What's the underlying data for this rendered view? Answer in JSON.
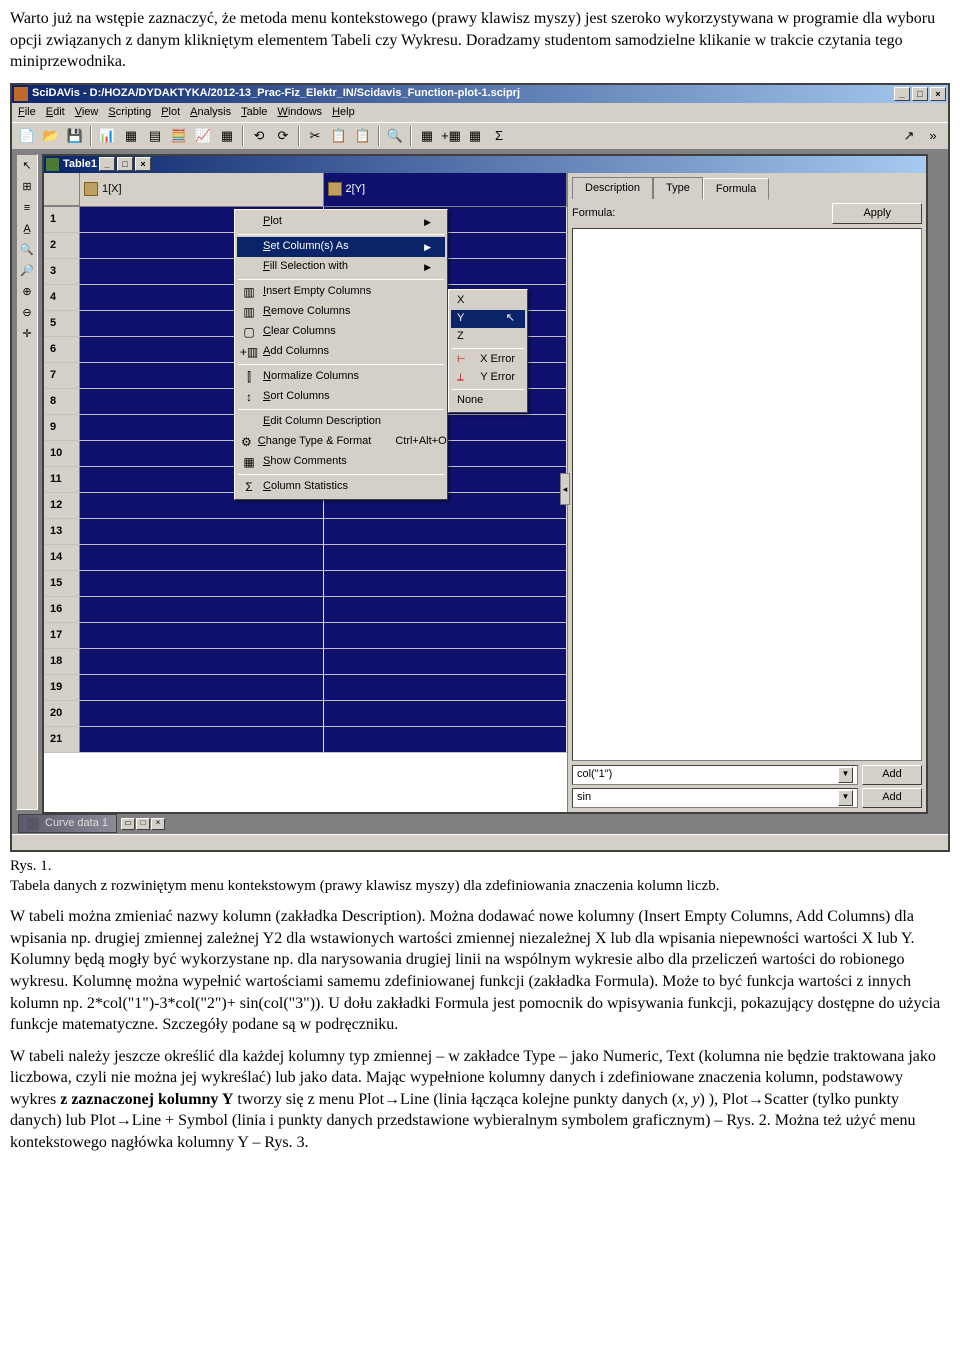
{
  "intro": {
    "p1": "Warto już na wstępie zaznaczyć, że metoda menu kontekstowego (prawy klawisz myszy) jest szeroko wykorzystywana w programie dla wyboru opcji związanych z danym klikniętym elementem Tabeli czy Wykresu. Doradzamy studentom samodzielne klikanie w trakcie czytania tego miniprzewodnika."
  },
  "app": {
    "title": "SciDAVis - D:/HOZA/DYDAKTYKA/2012-13_Prac-Fiz_Elektr_IN/Scidavis_Function-plot-1.sciprj",
    "menus": [
      "File",
      "Edit",
      "View",
      "Scripting",
      "Plot",
      "Analysis",
      "Table",
      "Windows",
      "Help"
    ],
    "toolbar_icons": [
      "📄",
      "📂",
      "💾",
      "📊",
      "▦",
      "▤",
      "🧮",
      "📈",
      "▦",
      "⟲",
      "⟳",
      "✂",
      "📋",
      "📋",
      "🔍",
      "▦",
      "+▦",
      "▦",
      "Σ"
    ],
    "toolbar_right_icons": [
      "↗",
      "»"
    ],
    "left_tool_icons": [
      "↖",
      "⊞",
      "≡",
      "A̲",
      "🔍",
      "🔎",
      "⊕",
      "⊖",
      "✛"
    ]
  },
  "child": {
    "title": "Table1",
    "columns": [
      "1[X]",
      "2[Y]"
    ],
    "row_count": 21
  },
  "ctx": {
    "items": [
      {
        "label": "Plot",
        "arrow": true
      },
      {
        "sep": true
      },
      {
        "label": "Set Column(s) As",
        "arrow": true,
        "hov": true
      },
      {
        "label": "Fill Selection with",
        "arrow": true
      },
      {
        "sep": true
      },
      {
        "icon": "▥",
        "label": "Insert Empty Columns"
      },
      {
        "icon": "▥",
        "label": "Remove Columns"
      },
      {
        "icon": "▢",
        "label": "Clear Columns"
      },
      {
        "icon": "+▥",
        "label": "Add Columns"
      },
      {
        "sep": true
      },
      {
        "icon": "⫿",
        "label": "Normalize Columns"
      },
      {
        "icon": "↕",
        "label": "Sort Columns"
      },
      {
        "sep": true
      },
      {
        "label": "Edit Column Description"
      },
      {
        "icon": "⚙",
        "label": "Change Type & Format",
        "shortcut": "Ctrl+Alt+O"
      },
      {
        "icon": "▦",
        "label": "Show Comments"
      },
      {
        "sep": true
      },
      {
        "icon": "Σ",
        "label": "Column Statistics"
      }
    ]
  },
  "sub": {
    "items": [
      {
        "label": "X"
      },
      {
        "label": "Y",
        "hov": true,
        "cursor": true
      },
      {
        "label": "Z"
      },
      {
        "sep": true
      },
      {
        "icon": "⊢",
        "label": "X Error",
        "color": "#c00000"
      },
      {
        "icon": "⟂",
        "label": "Y Error",
        "color": "#c00000"
      },
      {
        "sep": true
      },
      {
        "label": "None"
      }
    ]
  },
  "panel": {
    "tabs": [
      "Description",
      "Type",
      "Formula"
    ],
    "active_tab": 2,
    "formula_label": "Formula:",
    "apply": "Apply",
    "combo1": "col(\"1\")",
    "combo2": "sin",
    "add": "Add"
  },
  "secondary": {
    "title": "Curve data 1"
  },
  "caption": {
    "line1": "Rys. 1.",
    "line2": "Tabela danych z rozwiniętym menu kontekstowym (prawy klawisz myszy) dla zdefiniowania znaczenia kolumn liczb."
  },
  "body": {
    "p2a": "W tabeli można zmieniać nazwy kolumn (zakładka Description). Można dodawać nowe kolumny (Insert Empty Columns, Add Columns) dla wpisania np. drugiej zmiennej zależnej Y2 dla wstawionych wartości zmiennej niezależnej X lub dla wpisania niepewności wartości X lub Y. Kolumny będą  mogły być wykorzystane np. dla narysowania drugiej linii na wspólnym wykresie albo dla przeliczeń wartości do robionego wykresu.  Kolumnę można wypełnić wartościami samemu zdefiniowanej funkcji (zakładka Formula). Może to być funkcja wartości z innych kolumn np. 2*col(\"1\")-3*col(\"2\")+ sin(col(\"3\")).  U dołu zakładki Formula jest pomocnik do wpisywania funkcji, pokazujący dostępne do użycia funkcje matematyczne. Szczegóły podane są w podręczniku.",
    "p3a": "W tabeli należy jeszcze określić dla każdej kolumny typ zmiennej – w zakładce Type – jako Numeric, Text (kolumna nie będzie traktowana jako liczbowa, czyli nie można jej wykreślać) lub jako data. Mając wypełnione kolumny danych i zdefiniowane znaczenia kolumn, podstawowy wykres ",
    "p3b": "z zaznaczonej kolumny Y",
    "p3c": " tworzy się z menu Plot→Line (linia łącząca kolejne punkty danych  (",
    "p3d": "x",
    "p3e": ", ",
    "p3f": "y",
    "p3g": ") ), Plot→Scatter (tylko punkty danych) lub Plot→Line + Symbol (linia i punkty danych przedstawione wybieralnym symbolem graficznym) – Rys. 2. Można też użyć menu kontekstowego nagłówka kolumny Y – Rys. 3."
  }
}
